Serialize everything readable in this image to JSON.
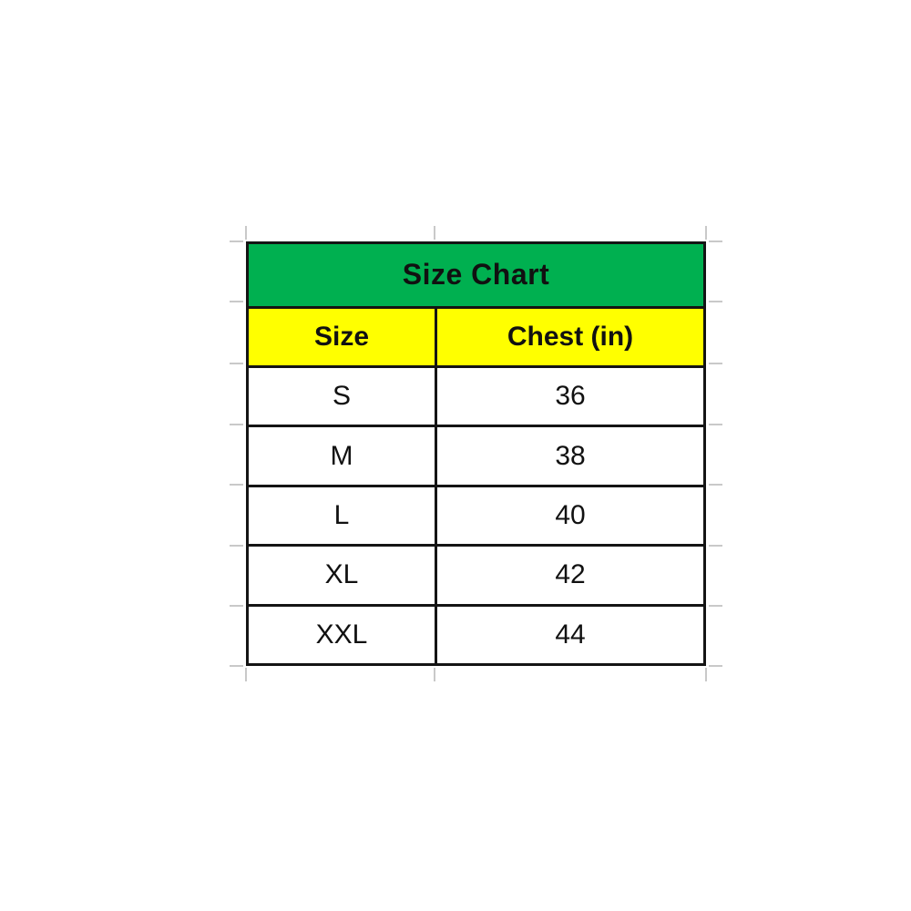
{
  "chart_data": {
    "type": "table",
    "title": "Size Chart",
    "columns": [
      "Size",
      "Chest (in)"
    ],
    "rows": [
      [
        "S",
        "36"
      ],
      [
        "M",
        "38"
      ],
      [
        "L",
        "40"
      ],
      [
        "XL",
        "42"
      ],
      [
        "XXL",
        "44"
      ]
    ]
  },
  "colors": {
    "title_background": "#00B050",
    "header_background": "#FFFF00",
    "cell_background": "#FFFFFF",
    "border": "#141414",
    "text": "#111111",
    "gridline": "#C9C9C9"
  }
}
